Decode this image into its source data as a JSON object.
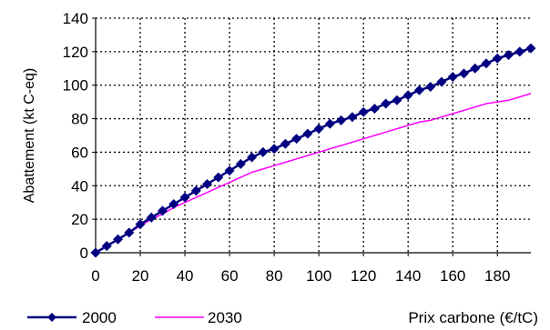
{
  "chart_data": {
    "type": "line",
    "title": "",
    "xlabel": "Prix carbone (€/tC)",
    "ylabel": "Abattement  (kt C-eq)",
    "xlim": [
      0,
      195
    ],
    "ylim": [
      0,
      140
    ],
    "x_ticks": [
      0,
      20,
      40,
      60,
      80,
      100,
      120,
      140,
      160,
      180
    ],
    "y_ticks": [
      0,
      20,
      40,
      60,
      80,
      100,
      120,
      140
    ],
    "grid": "dotted",
    "legend_position": "bottom-left",
    "series": [
      {
        "name": "2000",
        "color": "#000080",
        "marker": "diamond",
        "x": [
          0,
          5,
          10,
          15,
          20,
          25,
          30,
          35,
          40,
          45,
          50,
          55,
          60,
          65,
          70,
          75,
          80,
          85,
          90,
          95,
          100,
          105,
          110,
          115,
          120,
          125,
          130,
          135,
          140,
          145,
          150,
          155,
          160,
          165,
          170,
          175,
          180,
          185,
          190,
          195
        ],
        "y": [
          0,
          4,
          8,
          12,
          17,
          21,
          25,
          29,
          33,
          37,
          41,
          45,
          49,
          53,
          57,
          60,
          62,
          65,
          68,
          71,
          74,
          77,
          79,
          81,
          84,
          86,
          89,
          91,
          94,
          97,
          99,
          102,
          105,
          107,
          110,
          113,
          116,
          118,
          120,
          122
        ]
      },
      {
        "name": "2030",
        "color": "#ff00ff",
        "marker": "none",
        "x": [
          0,
          5,
          10,
          15,
          20,
          25,
          30,
          35,
          40,
          45,
          50,
          55,
          60,
          65,
          70,
          75,
          80,
          85,
          90,
          95,
          100,
          105,
          110,
          115,
          120,
          125,
          130,
          135,
          140,
          145,
          150,
          155,
          160,
          165,
          170,
          175,
          180,
          185,
          190,
          195
        ],
        "y": [
          0,
          4,
          8,
          12,
          16,
          20,
          23,
          27,
          30,
          33,
          36,
          39,
          42,
          45,
          48,
          50,
          52,
          54,
          56,
          58,
          60,
          62,
          64,
          66,
          68,
          70,
          72,
          74,
          76,
          78,
          79,
          81,
          83,
          85,
          87,
          89,
          90,
          91,
          93,
          95
        ]
      }
    ]
  }
}
